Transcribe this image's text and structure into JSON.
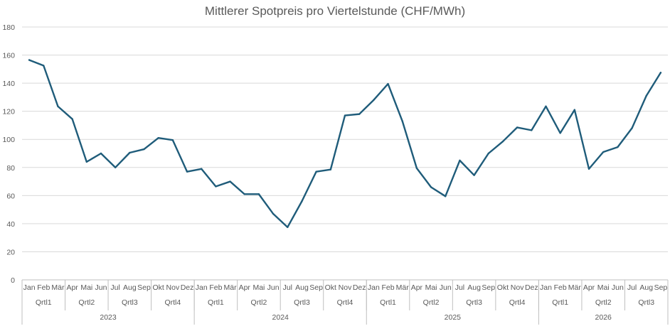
{
  "chart_data": {
    "type": "line",
    "title": "Mittlerer Spotpreis pro Viertelstunde (CHF/MWh)",
    "xlabel": "",
    "ylabel": "",
    "ylim": [
      0,
      180
    ],
    "yticks": [
      0,
      20,
      40,
      60,
      80,
      100,
      120,
      140,
      160,
      180
    ],
    "grid": true,
    "legend": "none",
    "categories": [
      "Jan",
      "Feb",
      "Mär",
      "Apr",
      "Mai",
      "Jun",
      "Jul",
      "Aug",
      "Sep",
      "Okt",
      "Nov",
      "Dez",
      "Jan",
      "Feb",
      "Mär",
      "Apr",
      "Mai",
      "Jun",
      "Jul",
      "Aug",
      "Sep",
      "Okt",
      "Nov",
      "Dez",
      "Jan",
      "Feb",
      "Mär",
      "Apr",
      "Mai",
      "Jun",
      "Jul",
      "Aug",
      "Sep",
      "Okt",
      "Nov",
      "Dez",
      "Jan",
      "Feb",
      "Mär",
      "Apr",
      "Mai",
      "Jun",
      "Jul",
      "Aug",
      "Sep"
    ],
    "quarters": [
      {
        "label": "Qrtl1",
        "months": 3
      },
      {
        "label": "Qrtl2",
        "months": 3
      },
      {
        "label": "Qrtl3",
        "months": 3
      },
      {
        "label": "Qrtl4",
        "months": 3
      },
      {
        "label": "Qrtl1",
        "months": 3
      },
      {
        "label": "Qrtl2",
        "months": 3
      },
      {
        "label": "Qrtl3",
        "months": 3
      },
      {
        "label": "Qrtl4",
        "months": 3
      },
      {
        "label": "Qrtl1",
        "months": 3
      },
      {
        "label": "Qrtl2",
        "months": 3
      },
      {
        "label": "Qrtl3",
        "months": 3
      },
      {
        "label": "Qrtl4",
        "months": 3
      },
      {
        "label": "Qrtl1",
        "months": 3
      },
      {
        "label": "Qrtl2",
        "months": 3
      },
      {
        "label": "Qrtl3",
        "months": 3
      }
    ],
    "years": [
      {
        "label": "2023",
        "months": 12
      },
      {
        "label": "2024",
        "months": 12
      },
      {
        "label": "2025",
        "months": 12
      },
      {
        "label": "2026",
        "months": 9
      }
    ],
    "series": [
      {
        "color": "#1f5c7a",
        "values": [
          156.5,
          152.5,
          123.5,
          114.5,
          84,
          90,
          80,
          90.5,
          93,
          101,
          99.5,
          77,
          79,
          66.5,
          70,
          61,
          61,
          47,
          37.5,
          56,
          77,
          78.5,
          117,
          118,
          128,
          139.5,
          113,
          79.5,
          66,
          59.5,
          85,
          74.5,
          90,
          98.5,
          108.5,
          106.5,
          123.5,
          104.5,
          121,
          79,
          91,
          94.5,
          108,
          131,
          147.5
        ]
      }
    ]
  }
}
